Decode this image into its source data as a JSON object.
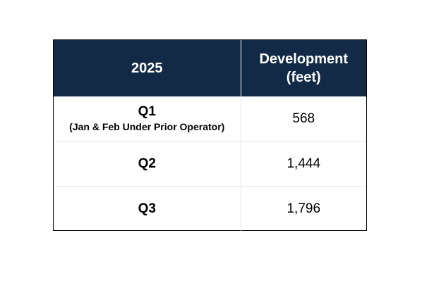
{
  "chart_data": {
    "type": "table",
    "columns": [
      "2025",
      "Development (feet)"
    ],
    "header": {
      "col1": "2025",
      "col2_line1": "Development",
      "col2_line2": "(feet)"
    },
    "rows": [
      {
        "label": "Q1",
        "note": "(Jan & Feb Under Prior Operator)",
        "value": "568"
      },
      {
        "label": "Q2",
        "value": "1,444"
      },
      {
        "label": "Q3",
        "value": "1,796"
      }
    ],
    "colors": {
      "header_bg": "#132a46",
      "header_text": "#ffffff",
      "border": "#000000"
    }
  }
}
